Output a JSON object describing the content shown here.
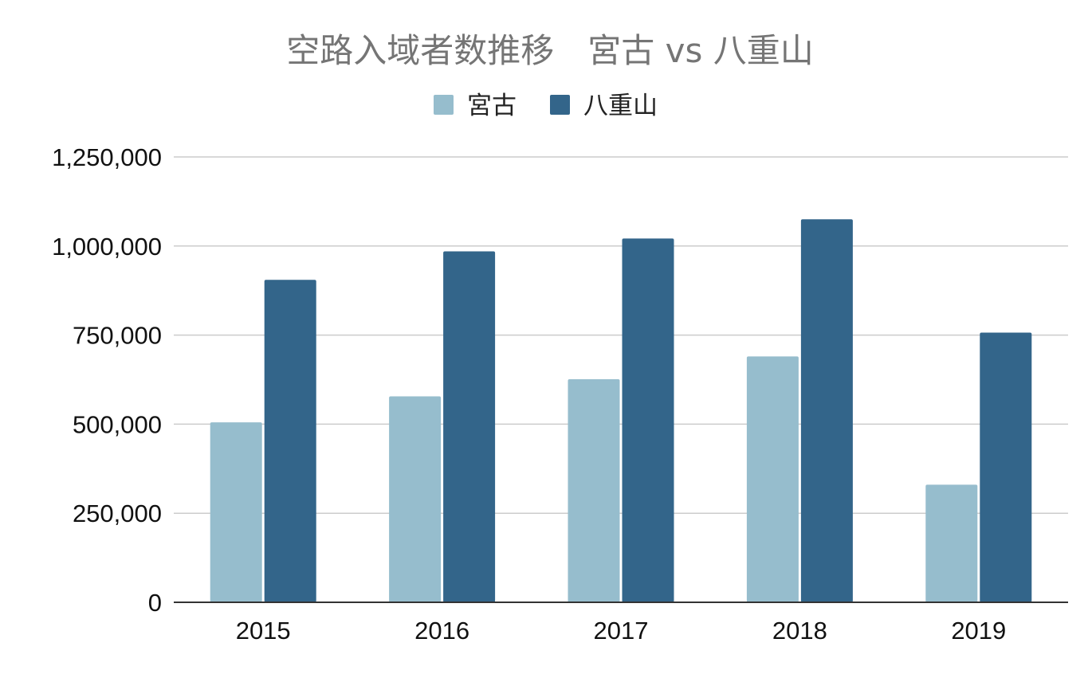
{
  "chart_data": {
    "type": "bar",
    "title": "空路入域者数推移　宮古 vs 八重山",
    "categories": [
      "2015",
      "2016",
      "2017",
      "2018",
      "2019"
    ],
    "series": [
      {
        "name": "宮古",
        "color": "#96bdcd",
        "values": [
          505000,
          578000,
          626000,
          690000,
          330000
        ]
      },
      {
        "name": "八重山",
        "color": "#33658a",
        "values": [
          905000,
          985000,
          1021000,
          1075000,
          757000
        ]
      }
    ],
    "ylim": [
      0,
      1250000
    ],
    "y_ticks": [
      0,
      250000,
      500000,
      750000,
      1000000,
      1250000
    ],
    "y_tick_labels": [
      "0",
      "250,000",
      "500,000",
      "750,000",
      "1,000,000",
      "1,250,000"
    ],
    "xlabel": "",
    "ylabel": "",
    "grid": true,
    "legend_position": "top-center"
  }
}
